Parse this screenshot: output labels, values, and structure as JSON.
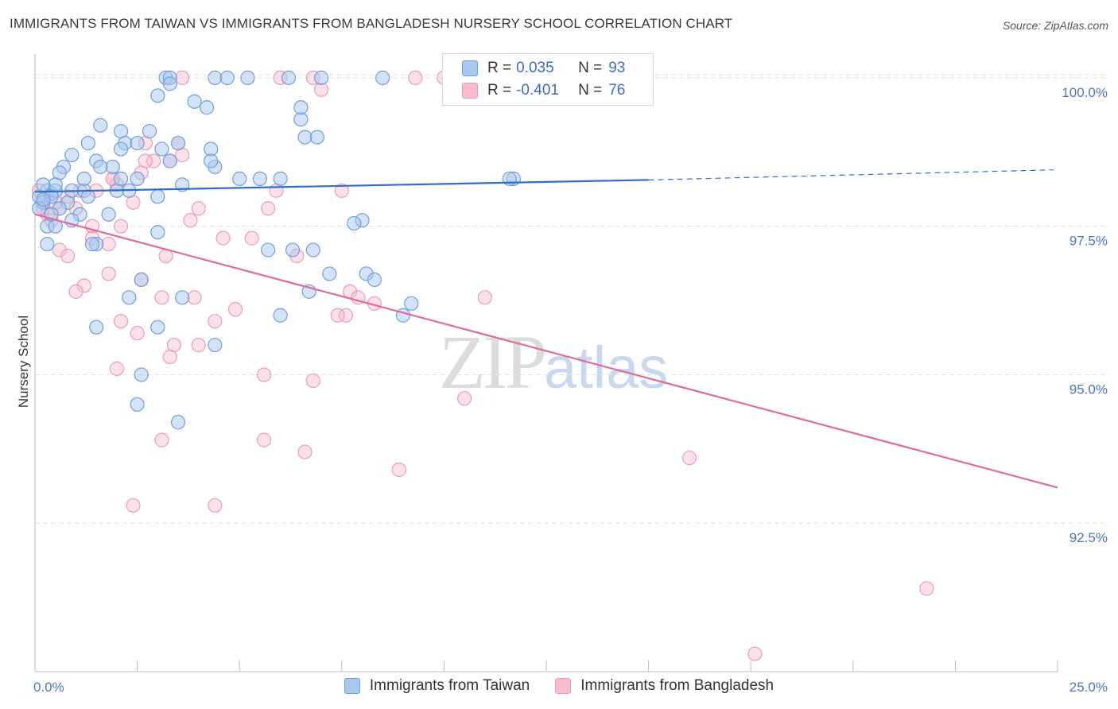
{
  "title": "IMMIGRANTS FROM TAIWAN VS IMMIGRANTS FROM BANGLADESH NURSERY SCHOOL CORRELATION CHART",
  "source": "Source: ZipAtlas.com",
  "watermark": {
    "zip": "ZIP",
    "atlas": "atlas"
  },
  "colors": {
    "taiwan_fill": "#a9c8f0",
    "taiwan_stroke": "#6f9fde",
    "taiwan_line": "#2f6fcc",
    "bangladesh_fill": "#f7bccd",
    "bangladesh_stroke": "#ee9bb5",
    "bangladesh_line": "#e06b96",
    "grid": "#e4e4e4",
    "tick_label": "#4a78c4"
  },
  "legend": {
    "rows": [
      {
        "r_label": "R =",
        "r_value": "0.035",
        "n_label": "N =",
        "n_value": "93"
      },
      {
        "r_label": "R =",
        "r_value": "-0.401",
        "n_label": "N =",
        "n_value": "76"
      }
    ]
  },
  "bottom_legend": [
    "Immigrants from Taiwan",
    "Immigrants from Bangladesh"
  ],
  "chart_data": {
    "type": "scatter",
    "title": "IMMIGRANTS FROM TAIWAN VS IMMIGRANTS FROM BANGLADESH NURSERY SCHOOL CORRELATION CHART",
    "xlabel": "",
    "ylabel": "Nursery School",
    "xlim": [
      0,
      25
    ],
    "ylim": [
      90,
      100.4
    ],
    "x_tick_labels": [
      "0.0%",
      "25.0%"
    ],
    "y_ticks": [
      92.5,
      95.0,
      97.5,
      100.0
    ],
    "y_tick_labels": [
      "92.5%",
      "95.0%",
      "97.5%",
      "100.0%"
    ],
    "grid": true,
    "series": [
      {
        "name": "Immigrants from Taiwan",
        "R": 0.035,
        "N": 93,
        "trend": {
          "x0": 0,
          "y0": 98.08,
          "x1": 15,
          "y1": 98.28,
          "dash_to_x": 25,
          "dash_to_y": 98.45
        },
        "points": [
          [
            3.2,
            100
          ],
          [
            3.3,
            100
          ],
          [
            4.4,
            100
          ],
          [
            4.7,
            100
          ],
          [
            5.2,
            100
          ],
          [
            6.2,
            100
          ],
          [
            7.0,
            100
          ],
          [
            8.5,
            100
          ],
          [
            3.0,
            99.7
          ],
          [
            3.9,
            99.6
          ],
          [
            4.2,
            99.5
          ],
          [
            6.5,
            99.3
          ],
          [
            6.5,
            99.5
          ],
          [
            1.6,
            99.2
          ],
          [
            2.1,
            99.1
          ],
          [
            2.8,
            99.1
          ],
          [
            6.6,
            99.0
          ],
          [
            6.9,
            99.0
          ],
          [
            1.3,
            98.9
          ],
          [
            2.2,
            98.9
          ],
          [
            2.5,
            98.9
          ],
          [
            3.5,
            98.9
          ],
          [
            3.1,
            98.8
          ],
          [
            4.3,
            98.8
          ],
          [
            2.1,
            98.8
          ],
          [
            0.9,
            98.7
          ],
          [
            3.3,
            98.6
          ],
          [
            1.5,
            98.6
          ],
          [
            0.7,
            98.5
          ],
          [
            1.9,
            98.5
          ],
          [
            1.6,
            98.5
          ],
          [
            4.4,
            98.5
          ],
          [
            0.6,
            98.4
          ],
          [
            2.5,
            98.3
          ],
          [
            5.0,
            98.3
          ],
          [
            5.5,
            98.3
          ],
          [
            6.0,
            98.3
          ],
          [
            11.7,
            98.3
          ],
          [
            11.6,
            98.3
          ],
          [
            3.6,
            98.2
          ],
          [
            2.3,
            98.1
          ],
          [
            1.2,
            98.1
          ],
          [
            2.0,
            98.1
          ],
          [
            0.4,
            98.05
          ],
          [
            0.3,
            98.1
          ],
          [
            0.5,
            98.1
          ],
          [
            0.1,
            98.0
          ],
          [
            1.3,
            98.0
          ],
          [
            3.0,
            98.0
          ],
          [
            0.2,
            97.9
          ],
          [
            0.8,
            97.9
          ],
          [
            0.6,
            97.8
          ],
          [
            0.1,
            97.8
          ],
          [
            0.4,
            97.7
          ],
          [
            1.1,
            97.7
          ],
          [
            1.8,
            97.7
          ],
          [
            0.9,
            97.6
          ],
          [
            8.0,
            97.6
          ],
          [
            7.8,
            97.55
          ],
          [
            0.3,
            97.5
          ],
          [
            0.5,
            97.5
          ],
          [
            3.0,
            97.4
          ],
          [
            1.5,
            97.2
          ],
          [
            0.3,
            97.2
          ],
          [
            1.4,
            97.2
          ],
          [
            6.3,
            97.1
          ],
          [
            5.7,
            97.1
          ],
          [
            6.8,
            97.1
          ],
          [
            7.2,
            96.7
          ],
          [
            8.1,
            96.7
          ],
          [
            8.3,
            96.6
          ],
          [
            2.6,
            96.6
          ],
          [
            6.7,
            96.4
          ],
          [
            3.6,
            96.3
          ],
          [
            2.3,
            96.3
          ],
          [
            9.2,
            96.2
          ],
          [
            6.0,
            96.0
          ],
          [
            9.0,
            96.0
          ],
          [
            1.5,
            95.8
          ],
          [
            3.0,
            95.8
          ],
          [
            4.4,
            95.5
          ],
          [
            2.6,
            95.0
          ],
          [
            2.5,
            94.5
          ],
          [
            3.5,
            94.2
          ],
          [
            3.3,
            99.9
          ],
          [
            4.3,
            98.6
          ],
          [
            1.2,
            98.3
          ],
          [
            2.1,
            98.3
          ],
          [
            0.5,
            98.2
          ],
          [
            0.2,
            98.2
          ],
          [
            0.9,
            98.1
          ],
          [
            0.4,
            98.0
          ],
          [
            0.2,
            97.95
          ]
        ]
      },
      {
        "name": "Immigrants from Bangladesh",
        "R": -0.401,
        "N": 76,
        "trend": {
          "x0": 0,
          "y0": 97.7,
          "x1": 25,
          "y1": 93.1
        },
        "points": [
          [
            3.6,
            100
          ],
          [
            6.0,
            100
          ],
          [
            6.8,
            100
          ],
          [
            9.3,
            100
          ],
          [
            10.0,
            100
          ],
          [
            7.0,
            99.8
          ],
          [
            3.5,
            98.9
          ],
          [
            3.6,
            98.7
          ],
          [
            2.7,
            98.9
          ],
          [
            2.9,
            98.6
          ],
          [
            2.7,
            98.6
          ],
          [
            1.9,
            98.3
          ],
          [
            2.6,
            98.4
          ],
          [
            2.0,
            98.2
          ],
          [
            1.5,
            98.1
          ],
          [
            5.9,
            98.1
          ],
          [
            7.5,
            98.1
          ],
          [
            0.3,
            98.0
          ],
          [
            0.5,
            97.9
          ],
          [
            1.0,
            97.8
          ],
          [
            0.2,
            97.8
          ],
          [
            0.3,
            97.7
          ],
          [
            0.4,
            97.6
          ],
          [
            4.0,
            97.8
          ],
          [
            5.7,
            97.8
          ],
          [
            3.8,
            97.6
          ],
          [
            2.1,
            97.5
          ],
          [
            1.4,
            97.5
          ],
          [
            1.4,
            97.3
          ],
          [
            4.6,
            97.3
          ],
          [
            5.3,
            97.3
          ],
          [
            1.8,
            97.2
          ],
          [
            0.6,
            97.1
          ],
          [
            0.8,
            97.0
          ],
          [
            3.2,
            97.0
          ],
          [
            6.4,
            97.0
          ],
          [
            1.8,
            96.7
          ],
          [
            2.6,
            96.6
          ],
          [
            1.2,
            96.5
          ],
          [
            1.0,
            96.4
          ],
          [
            3.1,
            96.3
          ],
          [
            3.9,
            96.3
          ],
          [
            7.7,
            96.4
          ],
          [
            7.9,
            96.3
          ],
          [
            8.3,
            96.2
          ],
          [
            4.9,
            96.1
          ],
          [
            7.6,
            96.0
          ],
          [
            7.4,
            96.0
          ],
          [
            4.4,
            95.9
          ],
          [
            2.1,
            95.9
          ],
          [
            2.5,
            95.7
          ],
          [
            3.4,
            95.5
          ],
          [
            4.0,
            95.5
          ],
          [
            3.3,
            95.3
          ],
          [
            2.0,
            95.1
          ],
          [
            5.6,
            95.0
          ],
          [
            6.8,
            94.9
          ],
          [
            11.0,
            96.3
          ],
          [
            10.5,
            94.6
          ],
          [
            3.1,
            93.9
          ],
          [
            5.6,
            93.9
          ],
          [
            6.6,
            93.7
          ],
          [
            8.9,
            93.4
          ],
          [
            16.0,
            93.6
          ],
          [
            2.4,
            92.8
          ],
          [
            4.4,
            92.8
          ],
          [
            21.8,
            91.4
          ],
          [
            17.6,
            90.3
          ],
          [
            0.1,
            98.1
          ],
          [
            0.2,
            97.9
          ],
          [
            0.6,
            97.8
          ],
          [
            1.1,
            98.1
          ],
          [
            3.3,
            98.6
          ],
          [
            2.4,
            97.9
          ],
          [
            1.9,
            98.3
          ],
          [
            0.8,
            98.0
          ]
        ]
      }
    ]
  }
}
